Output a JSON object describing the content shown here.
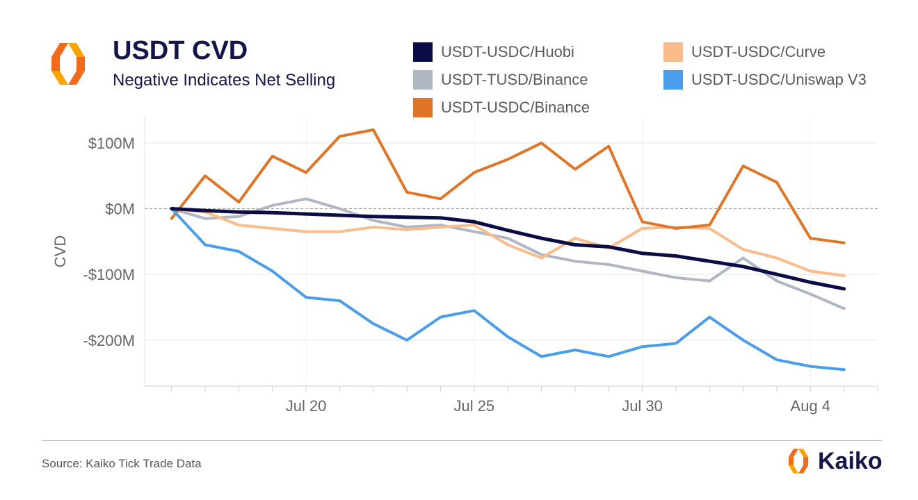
{
  "header": {
    "title": "USDT CVD",
    "subtitle": "Negative Indicates Net Selling"
  },
  "footer": {
    "source": "Source: Kaiko Tick Trade Data",
    "brand": "Kaiko"
  },
  "colors": {
    "huobi": "#0b0b45",
    "tusd_binance": "#b0b6c2",
    "usdc_binance": "#e07528",
    "curve": "#f9bc8a",
    "uniswap": "#4a9de8",
    "text_dark": "#14144a",
    "axis_text": "#666666"
  },
  "chart_data": {
    "type": "line",
    "title": "USDT CVD",
    "subtitle": "Negative Indicates Net Selling",
    "ylabel": "CVD",
    "xlabel": "",
    "x_start": "Jul 16",
    "x_end": "Aug 5",
    "xlim": [
      "Jul 16",
      "Aug 6"
    ],
    "ylim": [
      -270,
      140
    ],
    "y_units": "$M",
    "yticks": [
      {
        "value": 100,
        "label": "$100M"
      },
      {
        "value": 0,
        "label": "$0M"
      },
      {
        "value": -100,
        "label": "-$100M"
      },
      {
        "value": -200,
        "label": "-$200M"
      }
    ],
    "xticks": [
      {
        "value": "Jul 20",
        "label": "Jul 20"
      },
      {
        "value": "Jul 25",
        "label": "Jul 25"
      },
      {
        "value": "Jul 30",
        "label": "Jul 30"
      },
      {
        "value": "Aug 4",
        "label": "Aug 4"
      }
    ],
    "grid": true,
    "zero_line": "dashed",
    "legend_position": "top-right",
    "x_dates": [
      "Jul 16",
      "Jul 17",
      "Jul 18",
      "Jul 19",
      "Jul 20",
      "Jul 21",
      "Jul 22",
      "Jul 23",
      "Jul 24",
      "Jul 25",
      "Jul 26",
      "Jul 27",
      "Jul 28",
      "Jul 29",
      "Jul 30",
      "Jul 31",
      "Aug 1",
      "Aug 2",
      "Aug 3",
      "Aug 4",
      "Aug 5"
    ],
    "series": [
      {
        "name": "USDT-USDC/Huobi",
        "color": "#0b0b45",
        "values": [
          0,
          -3,
          -5,
          -6,
          -8,
          -10,
          -12,
          -13,
          -14,
          -20,
          -33,
          -45,
          -55,
          -58,
          -68,
          -72,
          -80,
          -88,
          -100,
          -112,
          -122
        ]
      },
      {
        "name": "USDT-TUSD/Binance",
        "color": "#b0b6c2",
        "values": [
          0,
          -15,
          -12,
          5,
          15,
          0,
          -18,
          -28,
          -25,
          -35,
          -45,
          -70,
          -80,
          -85,
          -95,
          -105,
          -110,
          -75,
          -110,
          -130,
          -152
        ]
      },
      {
        "name": "USDT-USDC/Binance",
        "color": "#e07528",
        "values": [
          -15,
          50,
          10,
          80,
          55,
          110,
          120,
          25,
          15,
          55,
          75,
          100,
          60,
          95,
          -20,
          -30,
          -25,
          65,
          40,
          -45,
          -52
        ]
      },
      {
        "name": "USDT-USDC/Curve",
        "color": "#f9bc8a",
        "values": [
          0,
          -5,
          -25,
          -30,
          -35,
          -35,
          -28,
          -32,
          -28,
          -25,
          -55,
          -75,
          -45,
          -60,
          -30,
          -28,
          -30,
          -62,
          -75,
          -95,
          -102
        ]
      },
      {
        "name": "USDT-USDC/Uniswap V3",
        "color": "#4a9de8",
        "values": [
          0,
          -55,
          -65,
          -95,
          -135,
          -140,
          -175,
          -200,
          -165,
          -155,
          -195,
          -225,
          -215,
          -225,
          -210,
          -205,
          -165,
          -200,
          -230,
          -240,
          -245
        ]
      }
    ]
  }
}
